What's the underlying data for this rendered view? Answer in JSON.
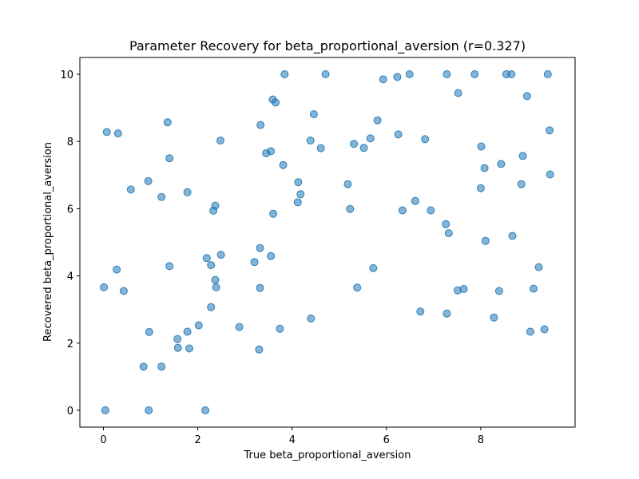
{
  "chart_data": {
    "type": "scatter",
    "title": "Parameter Recovery for beta_proportional_aversion (r=0.327)",
    "xlabel": "True beta_proportional_aversion",
    "ylabel": "Recovered beta_proportional_aversion",
    "xlim": [
      -0.5,
      10.0
    ],
    "ylim": [
      -0.5,
      10.5
    ],
    "x_ticks": [
      0,
      2,
      4,
      6,
      8
    ],
    "y_ticks": [
      0,
      2,
      4,
      6,
      8,
      10
    ],
    "grid": false,
    "marker_color": "#1f77b4",
    "marker_alpha": 0.55,
    "points": [
      [
        0.07,
        8.28
      ],
      [
        0.31,
        8.24
      ],
      [
        0.01,
        3.66
      ],
      [
        0.28,
        4.19
      ],
      [
        0.43,
        3.55
      ],
      [
        0.04,
        0.0
      ],
      [
        0.58,
        6.57
      ],
      [
        0.95,
        6.82
      ],
      [
        1.23,
        6.35
      ],
      [
        0.97,
        2.33
      ],
      [
        0.85,
        1.3
      ],
      [
        0.96,
        0.0
      ],
      [
        1.36,
        8.57
      ],
      [
        1.4,
        7.5
      ],
      [
        1.4,
        4.29
      ],
      [
        1.23,
        1.3
      ],
      [
        1.57,
        2.12
      ],
      [
        1.58,
        1.86
      ],
      [
        1.78,
        6.49
      ],
      [
        1.78,
        2.34
      ],
      [
        1.82,
        1.84
      ],
      [
        2.02,
        2.53
      ],
      [
        2.16,
        0.0
      ],
      [
        2.48,
        8.03
      ],
      [
        2.37,
        6.09
      ],
      [
        2.33,
        5.94
      ],
      [
        2.19,
        4.53
      ],
      [
        2.28,
        4.32
      ],
      [
        2.49,
        4.63
      ],
      [
        2.37,
        3.88
      ],
      [
        2.39,
        3.66
      ],
      [
        2.28,
        3.07
      ],
      [
        2.88,
        2.48
      ],
      [
        3.2,
        4.41
      ],
      [
        3.32,
        4.83
      ],
      [
        3.32,
        3.64
      ],
      [
        3.3,
        1.81
      ],
      [
        3.33,
        8.49
      ],
      [
        3.45,
        7.65
      ],
      [
        3.55,
        7.71
      ],
      [
        3.59,
        9.25
      ],
      [
        3.65,
        9.16
      ],
      [
        3.6,
        5.85
      ],
      [
        3.55,
        4.59
      ],
      [
        3.84,
        10.0
      ],
      [
        3.81,
        7.3
      ],
      [
        3.74,
        2.43
      ],
      [
        4.13,
        6.79
      ],
      [
        4.18,
        6.43
      ],
      [
        4.12,
        6.19
      ],
      [
        4.39,
        8.03
      ],
      [
        4.46,
        8.81
      ],
      [
        4.61,
        7.8
      ],
      [
        4.71,
        10.0
      ],
      [
        4.4,
        2.73
      ],
      [
        5.18,
        6.73
      ],
      [
        5.23,
        5.99
      ],
      [
        5.31,
        7.93
      ],
      [
        5.38,
        3.65
      ],
      [
        5.52,
        7.81
      ],
      [
        5.66,
        8.09
      ],
      [
        5.81,
        8.63
      ],
      [
        5.72,
        4.23
      ],
      [
        5.93,
        9.85
      ],
      [
        6.23,
        9.92
      ],
      [
        6.25,
        8.21
      ],
      [
        6.49,
        10.0
      ],
      [
        6.34,
        5.95
      ],
      [
        6.61,
        6.23
      ],
      [
        6.72,
        2.94
      ],
      [
        6.82,
        8.07
      ],
      [
        6.94,
        5.95
      ],
      [
        7.28,
        10.0
      ],
      [
        7.26,
        5.54
      ],
      [
        7.32,
        5.27
      ],
      [
        7.28,
        2.88
      ],
      [
        7.52,
        9.44
      ],
      [
        7.51,
        3.57
      ],
      [
        7.64,
        3.61
      ],
      [
        7.87,
        10.0
      ],
      [
        8.01,
        7.85
      ],
      [
        8.08,
        7.21
      ],
      [
        8.0,
        6.61
      ],
      [
        8.1,
        5.04
      ],
      [
        8.28,
        2.76
      ],
      [
        8.39,
        3.55
      ],
      [
        8.43,
        7.33
      ],
      [
        8.54,
        10.0
      ],
      [
        8.65,
        10.0
      ],
      [
        8.67,
        5.19
      ],
      [
        8.86,
        6.73
      ],
      [
        8.89,
        7.57
      ],
      [
        8.98,
        9.35
      ],
      [
        9.12,
        3.62
      ],
      [
        9.05,
        2.34
      ],
      [
        9.23,
        4.26
      ],
      [
        9.35,
        2.41
      ],
      [
        9.42,
        10.0
      ],
      [
        9.46,
        8.33
      ],
      [
        9.47,
        7.02
      ]
    ]
  }
}
